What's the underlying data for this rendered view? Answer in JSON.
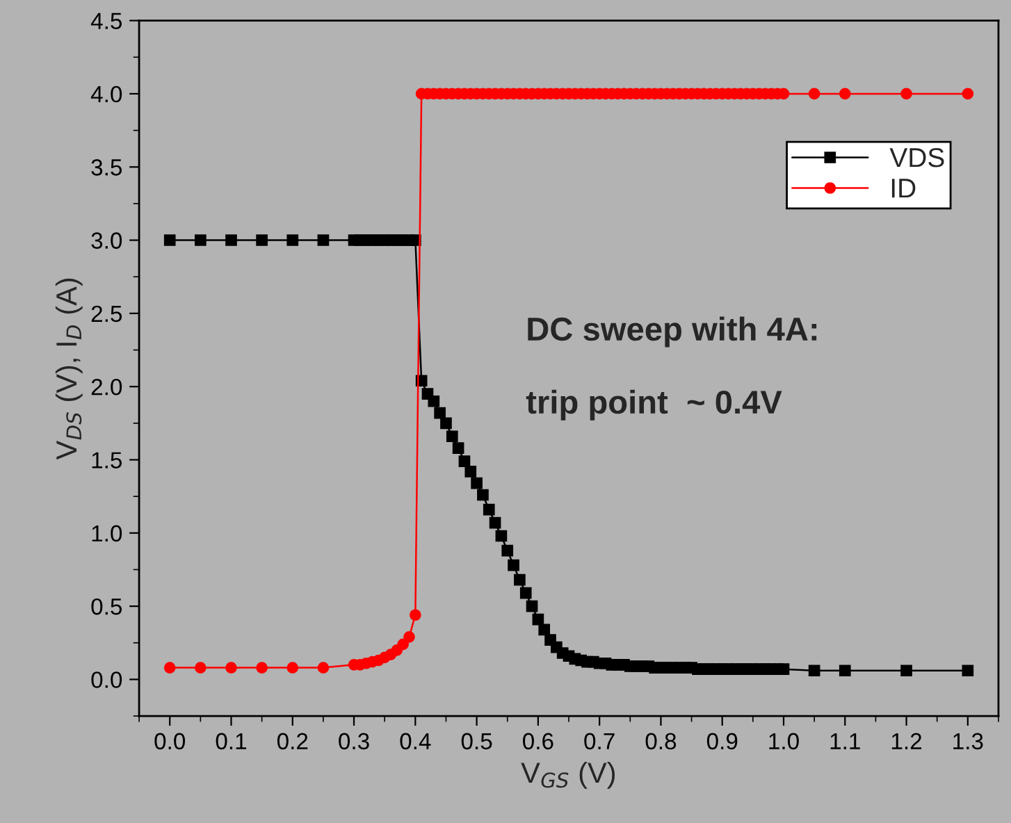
{
  "chart_data": {
    "type": "line",
    "xlabel": "V$_{GS}$ (V)",
    "ylabel": "V$_{DS}$ (V), I$_{D}$ (A)",
    "x": [
      0.0,
      0.05,
      0.1,
      0.15,
      0.2,
      0.25,
      0.3,
      0.31,
      0.32,
      0.33,
      0.34,
      0.35,
      0.36,
      0.37,
      0.38,
      0.39,
      0.4,
      0.41,
      0.42,
      0.43,
      0.44,
      0.45,
      0.46,
      0.47,
      0.48,
      0.49,
      0.5,
      0.51,
      0.52,
      0.53,
      0.54,
      0.55,
      0.56,
      0.57,
      0.58,
      0.59,
      0.6,
      0.61,
      0.62,
      0.63,
      0.64,
      0.65,
      0.66,
      0.67,
      0.68,
      0.69,
      0.7,
      0.71,
      0.72,
      0.73,
      0.74,
      0.75,
      0.76,
      0.77,
      0.78,
      0.79,
      0.8,
      0.81,
      0.82,
      0.83,
      0.84,
      0.85,
      0.86,
      0.87,
      0.88,
      0.89,
      0.9,
      0.91,
      0.92,
      0.93,
      0.94,
      0.95,
      0.96,
      0.97,
      0.98,
      0.99,
      1.0,
      1.05,
      1.1,
      1.2,
      1.3
    ],
    "series": [
      {
        "name": "VDS",
        "color": "#000000",
        "marker": "square",
        "values": [
          3.0,
          3.0,
          3.0,
          3.0,
          3.0,
          3.0,
          3.0,
          3.0,
          3.0,
          3.0,
          3.0,
          3.0,
          3.0,
          3.0,
          3.0,
          3.0,
          3.0,
          2.04,
          1.95,
          1.9,
          1.82,
          1.75,
          1.66,
          1.58,
          1.49,
          1.42,
          1.34,
          1.26,
          1.16,
          1.07,
          0.98,
          0.88,
          0.78,
          0.68,
          0.59,
          0.5,
          0.41,
          0.34,
          0.27,
          0.22,
          0.18,
          0.16,
          0.14,
          0.13,
          0.12,
          0.12,
          0.11,
          0.11,
          0.1,
          0.1,
          0.1,
          0.09,
          0.09,
          0.09,
          0.09,
          0.08,
          0.08,
          0.08,
          0.08,
          0.08,
          0.08,
          0.08,
          0.07,
          0.07,
          0.07,
          0.07,
          0.07,
          0.07,
          0.07,
          0.07,
          0.07,
          0.07,
          0.07,
          0.07,
          0.07,
          0.07,
          0.07,
          0.06,
          0.06,
          0.06,
          0.06
        ]
      },
      {
        "name": "ID",
        "color": "#ff0000",
        "marker": "circle",
        "values": [
          0.08,
          0.08,
          0.08,
          0.08,
          0.08,
          0.08,
          0.1,
          0.1,
          0.11,
          0.12,
          0.13,
          0.15,
          0.17,
          0.2,
          0.24,
          0.29,
          0.44,
          4.0,
          4.0,
          4.0,
          4.0,
          4.0,
          4.0,
          4.0,
          4.0,
          4.0,
          4.0,
          4.0,
          4.0,
          4.0,
          4.0,
          4.0,
          4.0,
          4.0,
          4.0,
          4.0,
          4.0,
          4.0,
          4.0,
          4.0,
          4.0,
          4.0,
          4.0,
          4.0,
          4.0,
          4.0,
          4.0,
          4.0,
          4.0,
          4.0,
          4.0,
          4.0,
          4.0,
          4.0,
          4.0,
          4.0,
          4.0,
          4.0,
          4.0,
          4.0,
          4.0,
          4.0,
          4.0,
          4.0,
          4.0,
          4.0,
          4.0,
          4.0,
          4.0,
          4.0,
          4.0,
          4.0,
          4.0,
          4.0,
          4.0,
          4.0,
          4.0,
          4.0,
          4.0,
          4.0,
          4.0
        ]
      }
    ],
    "xlim": [
      -0.05,
      1.35
    ],
    "xticks": [
      "0.0",
      0.1,
      0.2,
      0.3,
      0.4,
      0.5,
      0.6,
      0.7,
      0.8,
      0.9,
      "1.0",
      1.1,
      1.2,
      1.3
    ],
    "ylim": [
      -0.25,
      4.5
    ],
    "yticks": [
      "0.0",
      0.5,
      "1.0",
      1.5,
      "2.0",
      2.5,
      "3.0",
      3.5,
      "4.0",
      4.5
    ],
    "annotations": [
      "DC sweep with 4A:",
      "trip point  ~ 0.4V"
    ],
    "legend": "top right",
    "grid": false,
    "line_style": "solid"
  }
}
